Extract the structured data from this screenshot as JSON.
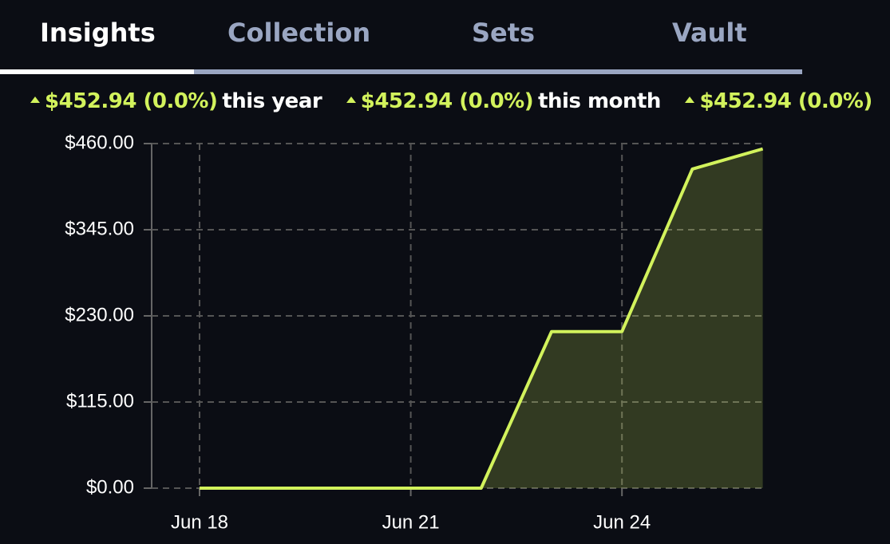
{
  "tabs": [
    "Insights",
    "Collection",
    "Sets",
    "Vault"
  ],
  "stats": [
    {
      "change": "$452.94 (0.0%)",
      "period": "this year"
    },
    {
      "change": "$452.94 (0.0%)",
      "period": "this month"
    },
    {
      "change": "$452.94 (0.0%)"
    }
  ],
  "chart_data": {
    "type": "line",
    "x": [
      "Jun 18",
      null,
      null,
      "Jun 21",
      null,
      null,
      "Jun 24",
      null,
      null
    ],
    "series": [
      {
        "color": "#d2f25c",
        "values": [
          0,
          0,
          0,
          0,
          0,
          209,
          209,
          426,
          452.94
        ]
      }
    ],
    "ylim": [
      0,
      460
    ],
    "yticks": [
      {
        "value": 0,
        "label": "$0.00"
      },
      {
        "value": 115,
        "label": "$115.00"
      },
      {
        "value": 230,
        "label": "$230.00"
      },
      {
        "value": 345,
        "label": "$345.00"
      },
      {
        "value": 460,
        "label": "$460.00"
      }
    ],
    "grid": true
  }
}
